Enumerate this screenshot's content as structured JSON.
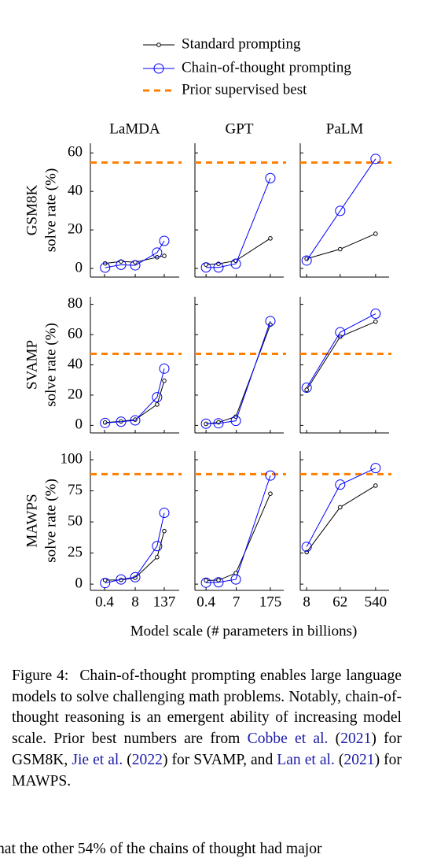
{
  "chart_data": {
    "type": "line",
    "xscale": "log",
    "series": [
      {
        "name": "Standard prompting",
        "color": "#000000"
      },
      {
        "name": "Chain-of-thought prompting",
        "color": "#0000ff"
      }
    ],
    "baseline": {
      "name": "Prior supervised best",
      "color": "#ff8000"
    },
    "xlabel": "Model scale (# parameters in billions)",
    "columns": [
      {
        "title": "LaMDA",
        "x": [
          0.422,
          2,
          8,
          68,
          137
        ],
        "xlim": [
          0.1,
          590
        ],
        "xticks": [
          0.4,
          8,
          137
        ]
      },
      {
        "title": "GPT",
        "x": [
          0.4,
          1.3,
          6.7,
          175
        ],
        "xlim": [
          0.14,
          620
        ],
        "xticks": [
          0.4,
          7,
          175
        ]
      },
      {
        "title": "PaLM",
        "x": [
          8,
          62,
          540
        ],
        "xlim": [
          5.4,
          1230
        ],
        "xticks": [
          8,
          62,
          540
        ]
      }
    ],
    "rows": [
      {
        "title": "GSM8K",
        "ylabel": "solve rate (%)",
        "ylim": [
          -4.5,
          65
        ],
        "yticks": [
          0,
          20,
          40,
          60
        ],
        "panels": [
          {
            "baseline": 55,
            "values": [
              [
                2.6,
                3.6,
                3.2,
                5.8,
                6.5
              ],
              [
                0.4,
                1.9,
                1.6,
                8.2,
                14.3
              ]
            ]
          },
          {
            "baseline": 55,
            "values": [
              [
                2,
                2.4,
                4,
                15.6
              ],
              [
                0.5,
                0.5,
                2.4,
                46.9
              ]
            ]
          },
          {
            "baseline": 55,
            "values": [
              [
                5,
                10,
                18
              ],
              [
                4.1,
                29.9,
                56.9
              ]
            ]
          }
        ]
      },
      {
        "title": "SVAMP",
        "ylabel": "solve rate (%)",
        "ylim": [
          -5,
          85
        ],
        "yticks": [
          0,
          20,
          40,
          60,
          80
        ],
        "panels": [
          {
            "baseline": 47.3,
            "values": [
              [
                1.9,
                2.6,
                3.8,
                13.8,
                29.5
              ],
              [
                1.6,
                2.4,
                3.3,
                18.6,
                37.5
              ]
            ]
          },
          {
            "baseline": 47.3,
            "values": [
              [
                1,
                2,
                5.8,
                66.6
              ],
              [
                1.1,
                1.4,
                3,
                68.9
              ]
            ]
          },
          {
            "baseline": 47.3,
            "values": [
              [
                23.5,
                58.6,
                68.6
              ],
              [
                24.9,
                61.5,
                73.8
              ]
            ]
          }
        ]
      },
      {
        "title": "MAWPS",
        "ylabel": "solve rate (%)",
        "ylim": [
          -5,
          107
        ],
        "yticks": [
          0,
          25,
          50,
          75,
          100
        ],
        "panels": [
          {
            "baseline": 88.4,
            "values": [
              [
                3.2,
                3.4,
                5.1,
                21.7,
                42.7
              ],
              [
                0.9,
                3.8,
                5.6,
                30.6,
                57.3
              ]
            ]
          },
          {
            "baseline": 88.4,
            "values": [
              [
                3,
                3.2,
                8.9,
                72.7
              ],
              [
                1.2,
                1.5,
                3.8,
                87.3
              ]
            ]
          },
          {
            "baseline": 88.4,
            "values": [
              [
                25.7,
                61.8,
                79.2
              ],
              [
                30,
                80,
                93.3
              ]
            ]
          }
        ]
      }
    ]
  },
  "caption": {
    "label": "Figure 4:",
    "parts": [
      {
        "text": "Chain-of-thought prompting enables large language models to solve challenging math problems. Notably, chain-of-thought reasoning is an emergent ability of increasing model scale. Prior best numbers are from "
      },
      {
        "text": "Cobbe et al.",
        "link": true
      },
      {
        "text": " ("
      },
      {
        "text": "2021",
        "link": true
      },
      {
        "text": ") for GSM8K, "
      },
      {
        "text": "Jie et al.",
        "link": true
      },
      {
        "text": " ("
      },
      {
        "text": "2022",
        "link": true
      },
      {
        "text": ") for SVAMP, and "
      },
      {
        "text": "Lan et al.",
        "link": true
      },
      {
        "text": " ("
      },
      {
        "text": "2021",
        "link": true
      },
      {
        "text": ") for MAWPS."
      }
    ]
  },
  "body_fragment": "hat the other 54% of the chains of thought had major"
}
